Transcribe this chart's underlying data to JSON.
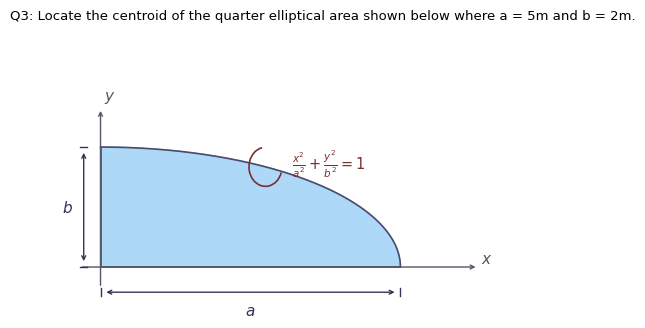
{
  "title": "Q3: Locate the centroid of the quarter elliptical area shown below where a = 5m and b = 2m.",
  "title_fontsize": 9.5,
  "title_fontweight": "normal",
  "bg_color": "#ffffff",
  "fill_color": "#add8f7",
  "fill_alpha": 1.0,
  "curve_color": "#4a4a6a",
  "axis_color": "#555566",
  "annotation_color": "#333355",
  "eq_color": "#7a3030",
  "a": 5,
  "b": 2,
  "eq_text": "$\\frac{x^2}{a^2} + \\frac{y^2}{b^2} = 1$",
  "label_x": "$x$",
  "label_y": "$y$",
  "label_a": "$a$",
  "label_b": "$b$"
}
